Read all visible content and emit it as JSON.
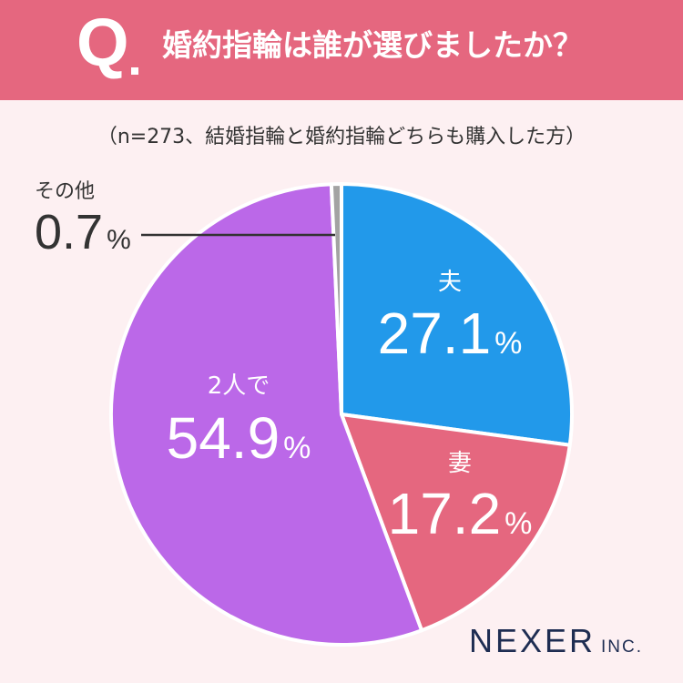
{
  "header": {
    "q_mark": "Q",
    "question": "婚約指輪は誰が選びましたか？"
  },
  "subtitle": "（n=273、結婚指輪と婚約指輪どちらも購入した方）",
  "chart_data": {
    "type": "pie",
    "title": "婚約指輪は誰が選びましたか？",
    "slices": [
      {
        "label": "夫",
        "value": 27.1,
        "display": "27.1",
        "unit": "%",
        "color": "#2299ea"
      },
      {
        "label": "妻",
        "value": 17.2,
        "display": "17.2",
        "unit": "%",
        "color": "#e5677f"
      },
      {
        "label": "2人で",
        "value": 54.9,
        "display": "54.9",
        "unit": "%",
        "color": "#bb68e8"
      },
      {
        "label": "その他",
        "value": 0.7,
        "display": "0.7",
        "unit": "%",
        "color": "#a3a3a3"
      }
    ]
  },
  "logo": {
    "main": "NEXER",
    "inc": "INC."
  }
}
